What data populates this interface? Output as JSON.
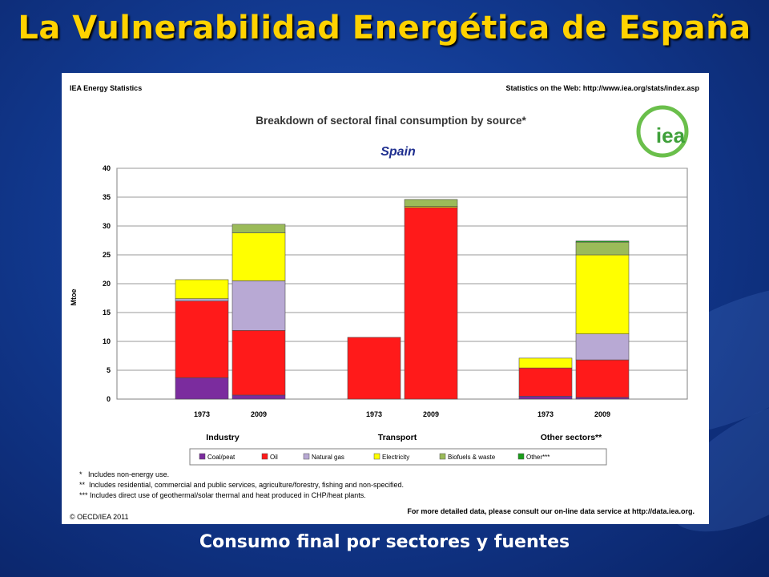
{
  "slide": {
    "title": "La Vulnerabilidad Energética de España",
    "caption": "Consumo final por sectores y fuentes"
  },
  "panel": {
    "header_left": "IEA Energy Statistics",
    "header_right": "Statistics on the Web: http://www.iea.org/stats/index.asp",
    "logo_text": "iea",
    "footnotes": [
      "*   Includes non-energy use.",
      "**  Includes residential, commercial and public services, agriculture/forestry, fishing and non-specified.",
      "*** Includes direct use of geothermal/solar thermal and heat produced in CHP/heat plants."
    ],
    "copyright": "© OECD/IEA 2011",
    "footer_right": "For more detailed data, please consult our on-line data service at http://data.iea.org."
  },
  "chart_data": {
    "type": "bar",
    "stacked": true,
    "title": "Breakdown of sectoral final consumption by source*",
    "subtitle": "Spain",
    "ylabel": "Mtoe",
    "ylim": [
      0,
      40
    ],
    "yticks": [
      0,
      5,
      10,
      15,
      20,
      25,
      30,
      35,
      40
    ],
    "grid": true,
    "legend_position": "bottom",
    "groups": [
      {
        "name": "Industry",
        "years": [
          "1973",
          "2009"
        ]
      },
      {
        "name": "Transport",
        "years": [
          "1973",
          "2009"
        ]
      },
      {
        "name": "Other sectors**",
        "years": [
          "1973",
          "2009"
        ]
      }
    ],
    "series": [
      {
        "name": "Coal/peat",
        "color": "#7b2c9e",
        "values": [
          3.7,
          0.7,
          0.0,
          0.0,
          0.5,
          0.3
        ]
      },
      {
        "name": "Oil",
        "color": "#ff1a1a",
        "values": [
          13.3,
          11.2,
          10.7,
          33.2,
          4.9,
          6.5
        ]
      },
      {
        "name": "Natural gas",
        "color": "#b8a9d4",
        "values": [
          0.4,
          8.6,
          0.0,
          0.0,
          0.0,
          4.5
        ]
      },
      {
        "name": "Electricity",
        "color": "#ffff00",
        "values": [
          3.3,
          8.3,
          0.0,
          0.2,
          1.7,
          13.7
        ]
      },
      {
        "name": "Biofuels & waste",
        "color": "#9bbb59",
        "values": [
          0.0,
          1.5,
          0.0,
          1.2,
          0.0,
          2.2
        ]
      },
      {
        "name": "Other***",
        "color": "#1a9e1a",
        "values": [
          0.0,
          0.0,
          0.0,
          0.0,
          0.0,
          0.2
        ]
      }
    ]
  }
}
